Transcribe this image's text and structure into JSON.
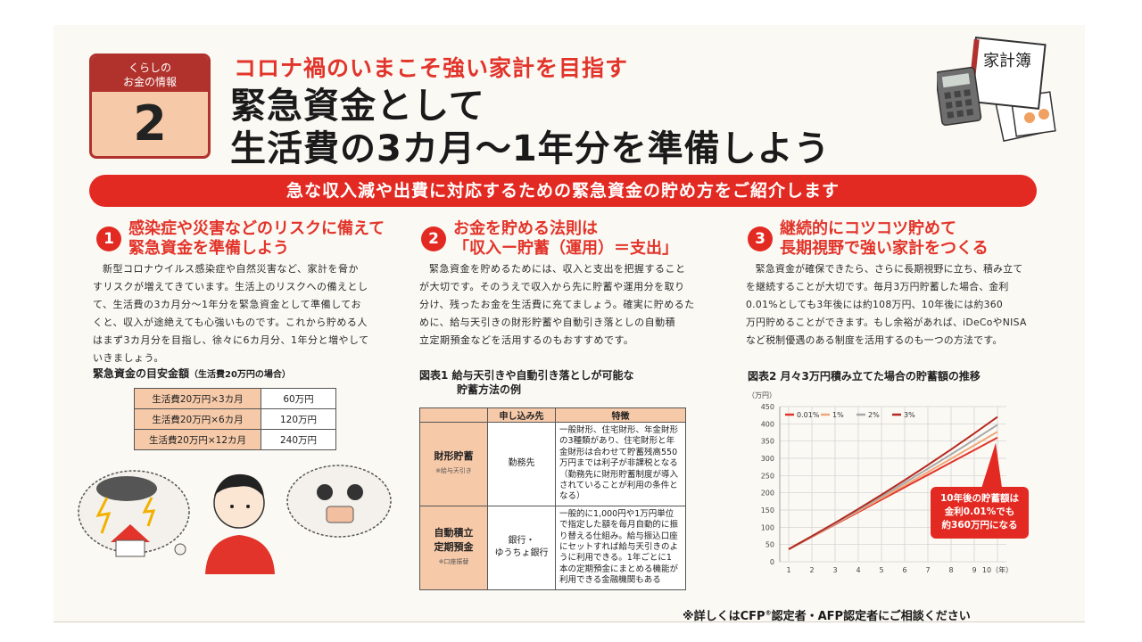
{
  "badge": {
    "line1": "くらしの",
    "line2": "お金の情報",
    "number": "2"
  },
  "header": {
    "kicker": "コロナ禍のいまこそ強い家計を目指す",
    "title_line1": "緊急資金として",
    "title_line2": "生活費の3カ月〜1年分を準備しよう"
  },
  "illustration": {
    "book_label": "家計簿"
  },
  "banner": "急な収入減や出費に対応するための緊急資金の貯め方をご紹介します",
  "sections": [
    {
      "number": "1",
      "heading_line1": "感染症や災害などのリスクに備えて",
      "heading_line2": "緊急資金を準備しよう",
      "body": [
        "新型コロナウイルス感染症や自然災害など、家計を脅か",
        "すリスクが増えてきています。生活上のリスクへの備えとし",
        "て、生活費の3カ月分〜1年分を緊急資金として準備してお",
        "くと、収入が途絶えても心強いものです。これから貯める人",
        "はまず3カ月分を目指し、徐々に6カ月分、1年分と増やして",
        "いきましょう。"
      ]
    },
    {
      "number": "2",
      "heading_line1": "お金を貯める法則は",
      "heading_line2": "「収入ー貯蓄（運用）＝支出」",
      "body": [
        "緊急資金を貯めるためには、収入と支出を把握すること",
        "が大切です。そのうえで収入から先に貯蓄や運用分を取り",
        "分け、残ったお金を生活費に充てましょう。確実に貯めるた",
        "めに、給与天引きの財形貯蓄や自動引き落としの自動積",
        "立定期預金などを活用するのもおすすめです。"
      ]
    },
    {
      "number": "3",
      "heading_line1": "継続的にコツコツ貯めて",
      "heading_line2": "長期視野で強い家計をつくる",
      "body": [
        "緊急資金が確保できたら、さらに長期視野に立ち、積み立て",
        "を継続することが大切です。毎月3万円貯蓄した場合、金利",
        "0.01%としても3年後には約108万円、10年後には約360",
        "万円貯めることができます。もし余裕があれば、iDeCoやNISA",
        "など税制優遇のある制度を活用するのも一つの方法です。"
      ]
    }
  ],
  "target_table": {
    "title": "緊急資金の目安金額",
    "title_note": "（生活費20万円の場合）",
    "rows": [
      {
        "label": "生活費20万円×3カ月",
        "value": "60万円"
      },
      {
        "label": "生活費20万円×6カ月",
        "value": "120万円"
      },
      {
        "label": "生活費20万円×12カ月",
        "value": "240万円"
      }
    ]
  },
  "savings_table": {
    "title_line1": "図表1  給与天引きや自動引き落としが可能な",
    "title_line2": "貯蓄方法の例",
    "headers": [
      "",
      "申し込み先",
      "特徴"
    ],
    "rows": [
      {
        "name": "財形貯蓄",
        "note": "※給与天引き",
        "dest_line1": "勤務先",
        "dest_line2": "",
        "features": [
          "一般財形、住宅財形、年金財形",
          "の3種類があり、住宅財形と年",
          "金財形は合わせて貯蓄残高550",
          "万円までは利子が非課税となる",
          "（勤務先に財形貯蓄制度が導入",
          "されていることが利用の条件と",
          "なる）"
        ]
      },
      {
        "name": "自動積立\n定期預金",
        "note": "※口座振替",
        "dest_line1": "銀行・",
        "dest_line2": "ゆうちょ銀行",
        "features": [
          "一般的に1,000円や1万円単位",
          "で指定した額を毎月自動的に振",
          "り替える仕組み。給与振込口座",
          "にセットすれば給与天引きのよ",
          "うに利用できる。1年ごとに1",
          "本の定期預金にまとめる機能が",
          "利用できる金融機関もある"
        ]
      }
    ]
  },
  "chart_data": {
    "type": "line",
    "title": "図表2  月々3万円積み立てた場合の貯蓄額の推移",
    "ylabel": "（万円）",
    "xlabel_suffix": "10（年）",
    "x": [
      1,
      2,
      3,
      4,
      5,
      6,
      7,
      8,
      9,
      10
    ],
    "ylim": [
      0,
      450
    ],
    "yticks": [
      0,
      50,
      100,
      150,
      200,
      250,
      300,
      350,
      400,
      450
    ],
    "legend_position": "top-left",
    "series": [
      {
        "name": "0.01%",
        "color": "#e2342a",
        "values": [
          36,
          72,
          108,
          144,
          180,
          216,
          252,
          288,
          324,
          360
        ]
      },
      {
        "name": "1%",
        "color": "#f0a878",
        "values": [
          36.2,
          72.7,
          109.6,
          146.7,
          184.2,
          222.1,
          260.3,
          298.8,
          337.7,
          377.0
        ]
      },
      {
        "name": "2%",
        "color": "#a8a8a8",
        "values": [
          36.4,
          73.5,
          111.3,
          149.9,
          189.1,
          229.1,
          269.9,
          311.5,
          353.9,
          397.2
        ]
      },
      {
        "name": "3%",
        "color": "#b5291f",
        "values": [
          36.5,
          74.2,
          113.0,
          153.1,
          194.3,
          236.8,
          280.6,
          325.7,
          372.2,
          420.0
        ]
      }
    ],
    "annotation": [
      "10年後の貯蓄額は",
      "金利0.01%でも",
      "約360万円になる"
    ]
  },
  "footer": {
    "text_before": "※詳しくはCFP",
    "reg_mark": "®",
    "text_after": "認定者・AFP認定者にご相談ください"
  }
}
